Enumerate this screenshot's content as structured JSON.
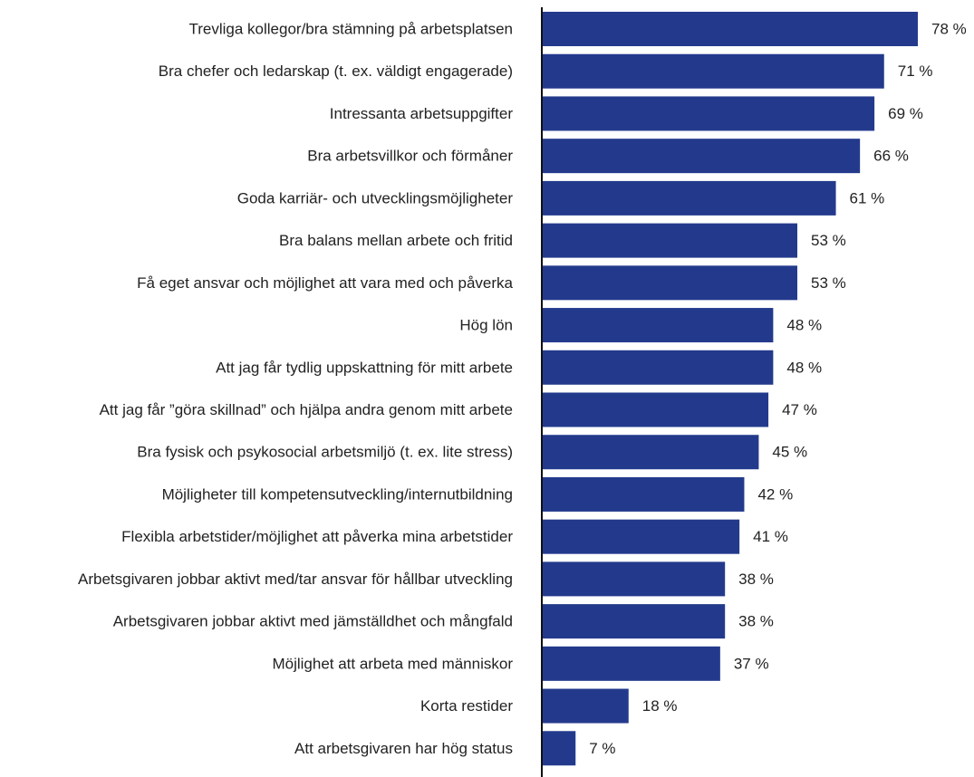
{
  "chart_data": {
    "type": "bar",
    "orientation": "horizontal",
    "categories": [
      "Trevliga kollegor/bra stämning på arbetsplatsen",
      "Bra chefer och ledarskap (t. ex. väldigt engagerade)",
      "Intressanta arbetsuppgifter",
      "Bra arbetsvillkor och förmåner",
      "Goda karriär- och utvecklingsmöjligheter",
      "Bra balans mellan arbete och fritid",
      "Få eget ansvar och möjlighet att vara med och påverka",
      "Hög lön",
      "Att jag får tydlig uppskattning för mitt arbete",
      "Att jag får ”göra skillnad” och hjälpa andra genom mitt arbete",
      "Bra fysisk och psykosocial arbetsmiljö (t. ex. lite stress)",
      "Möjligheter till kompetensutveckling/internutbildning",
      "Flexibla arbetstider/möjlighet att påverka mina arbetstider",
      "Arbetsgivaren jobbar aktivt med/tar ansvar för hållbar utveckling",
      "Arbetsgivaren jobbar aktivt med jämställdhet och mångfald",
      "Möjlighet att arbeta med människor",
      "Korta restider",
      "Att arbetsgivaren har hög status"
    ],
    "values": [
      78,
      71,
      69,
      66,
      61,
      53,
      53,
      48,
      48,
      47,
      45,
      42,
      41,
      38,
      38,
      37,
      18,
      7
    ],
    "value_labels": [
      "78 %",
      "71 %",
      "69 %",
      "66 %",
      "61 %",
      "53 %",
      "53 %",
      "48 %",
      "48 %",
      "47 %",
      "45 %",
      "42 %",
      "41 %",
      "38 %",
      "38 %",
      "37 %",
      "18 %",
      "7 %"
    ],
    "title": "",
    "xlabel": "",
    "ylabel": "",
    "xlim": [
      0,
      78
    ],
    "grid": false,
    "legend": "none",
    "bar_color": "#233a8c",
    "axis_color": "#111111",
    "text_color": "#222222"
  }
}
